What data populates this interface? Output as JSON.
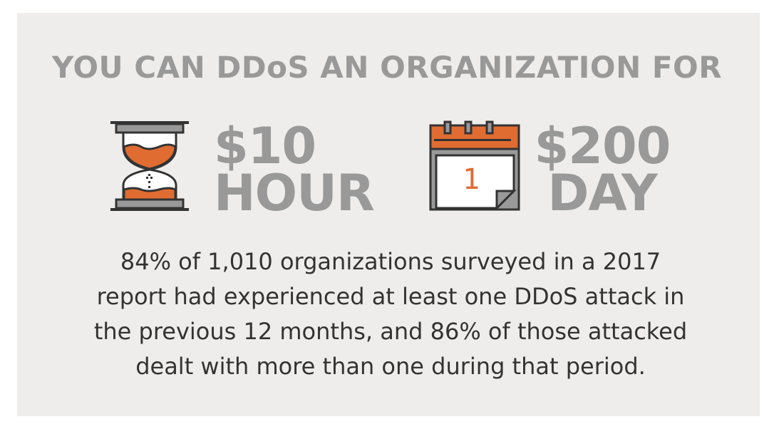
{
  "title": "YOU CAN DDoS AN ORGANIZATION FOR",
  "hour": {
    "price": "$10",
    "unit": "HOUR",
    "icon": "hourglass-icon"
  },
  "day": {
    "price": "$200",
    "unit": "DAY",
    "icon": "calendar-icon",
    "calendar_number": "1"
  },
  "body_lines": [
    "84% of 1,010 organizations surveyed in a 2017",
    "report had experienced at least one DDoS attack in",
    "the previous 12 months, and 86% of those attacked",
    "dealt with more than one during that period."
  ],
  "colors": {
    "accent": "#e06c32",
    "gray": "#999999",
    "dark": "#333333",
    "background": "#eeedeb"
  }
}
